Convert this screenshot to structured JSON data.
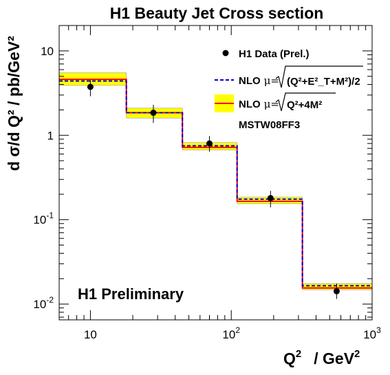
{
  "chart_data": {
    "type": "histogram",
    "title": "H1 Beauty Jet Cross section",
    "xlabel": "Q",
    "xlabel_sup": "2",
    "xlabel_unit": "/ GeV",
    "xlabel_unit_sup": "2",
    "ylabel": "d σ/d Q² / pb/GeV²",
    "x_scale": "log",
    "y_scale": "log",
    "xlim": [
      6,
      1000
    ],
    "ylim": [
      0.0065,
      20
    ],
    "x_ticks": [
      {
        "value": 10,
        "base": "10",
        "exp": ""
      },
      {
        "value": 100,
        "base": "10",
        "exp": "2"
      },
      {
        "value": 1000,
        "base": "10",
        "exp": "3"
      }
    ],
    "y_ticks": [
      {
        "value": 10,
        "base": "10",
        "exp": ""
      },
      {
        "value": 1,
        "base": "1",
        "exp": ""
      },
      {
        "value": 0.1,
        "base": "10",
        "exp": "-1"
      },
      {
        "value": 0.01,
        "base": "10",
        "exp": "-2"
      }
    ],
    "bins": [
      {
        "low": 6,
        "high": 18,
        "nlo_solid": 4.6,
        "nlo_dashed": 4.4,
        "band_low": 3.9,
        "band_high": 5.5
      },
      {
        "low": 18,
        "high": 45,
        "nlo_solid": 1.85,
        "nlo_dashed": 1.85,
        "band_low": 1.6,
        "band_high": 2.1
      },
      {
        "low": 45,
        "high": 110,
        "nlo_solid": 0.72,
        "nlo_dashed": 0.75,
        "band_low": 0.67,
        "band_high": 0.82
      },
      {
        "low": 110,
        "high": 320,
        "nlo_solid": 0.165,
        "nlo_dashed": 0.175,
        "band_low": 0.155,
        "band_high": 0.185
      },
      {
        "low": 320,
        "high": 1000,
        "nlo_solid": 0.0155,
        "nlo_dashed": 0.0165,
        "band_low": 0.0148,
        "band_high": 0.0175
      }
    ],
    "data_points": [
      {
        "x": 10,
        "y": 3.75,
        "err_low": 2.9,
        "err_high": 4.5
      },
      {
        "x": 28,
        "y": 1.85,
        "err_low": 1.4,
        "err_high": 2.3
      },
      {
        "x": 70,
        "y": 0.8,
        "err_low": 0.64,
        "err_high": 0.98
      },
      {
        "x": 190,
        "y": 0.18,
        "err_low": 0.14,
        "err_high": 0.22
      },
      {
        "x": 560,
        "y": 0.0142,
        "err_low": 0.0115,
        "err_high": 0.0175
      }
    ],
    "legend": {
      "placement": "top-right",
      "data_label": "H1 Data (Prel.)",
      "nlo_prefix": "NLO",
      "mu_label": "μ=",
      "dashed_formula": "(Q²+E²_T+M²)/2",
      "solid_formula": "Q²+4M²",
      "pdf_label": "MSTW08FF3"
    },
    "annotation": "H1 Preliminary",
    "colors": {
      "data": "#000000",
      "nlo_solid": "#ff0000",
      "nlo_dashed": "#0000cc",
      "band": "#ffff00",
      "band_edge": "#999999",
      "frame": "#000000"
    }
  }
}
